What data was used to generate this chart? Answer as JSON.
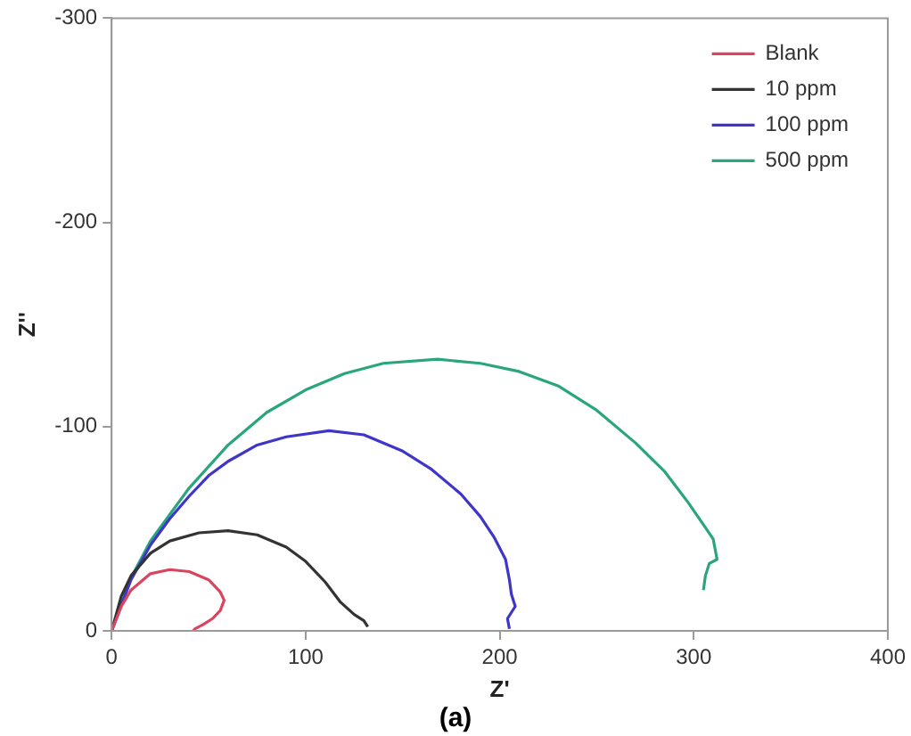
{
  "chart_data": {
    "type": "line",
    "xlabel": "Z'",
    "ylabel": "Z''",
    "annotations": [
      "(a)"
    ],
    "xlim": [
      0,
      400
    ],
    "xticks": [
      0,
      100,
      200,
      300,
      400
    ],
    "ylim": [
      0,
      -300
    ],
    "yticks": [
      0,
      -100,
      -200,
      -300
    ],
    "grid": false,
    "legend": "top right",
    "marker": "none",
    "line_style": "solid",
    "series": [
      {
        "name": "Blank",
        "color": "#d9455f",
        "x": [
          0,
          5,
          10,
          20,
          30,
          40,
          50,
          56,
          58,
          56,
          52,
          47,
          43,
          42
        ],
        "values": [
          0,
          -12,
          -20,
          -28,
          -30,
          -29,
          -25,
          -19,
          -15,
          -10,
          -6,
          -3,
          -1,
          0
        ]
      },
      {
        "name": "10 ppm",
        "color": "#333333",
        "x": [
          0,
          5,
          10,
          20,
          30,
          45,
          60,
          75,
          90,
          100,
          110,
          118,
          125,
          130,
          132
        ],
        "values": [
          0,
          -17,
          -27,
          -38,
          -44,
          -48,
          -49,
          -47,
          -41,
          -34,
          -24,
          -14,
          -8,
          -5,
          -2
        ]
      },
      {
        "name": "100 ppm",
        "color": "#3f35c8",
        "x": [
          0,
          10,
          20,
          30,
          40,
          50,
          60,
          75,
          90,
          112,
          130,
          150,
          165,
          180,
          190,
          197,
          203,
          205,
          206,
          208,
          204,
          205
        ],
        "values": [
          0,
          -25,
          -42,
          -55,
          -66,
          -76,
          -83,
          -91,
          -95,
          -98,
          -96,
          -88,
          -79,
          -67,
          -56,
          -46,
          -35,
          -25,
          -18,
          -12,
          -6,
          -1
        ]
      },
      {
        "name": "500 ppm",
        "color": "#2aa57e",
        "x": [
          0,
          10,
          20,
          40,
          60,
          80,
          100,
          120,
          140,
          168,
          190,
          210,
          230,
          250,
          270,
          285,
          297,
          305,
          310,
          311,
          312,
          308,
          306,
          305
        ],
        "values": [
          0,
          -26,
          -44,
          -70,
          -91,
          -107,
          -118,
          -126,
          -131,
          -133,
          -131,
          -127,
          -120,
          -108,
          -92,
          -78,
          -63,
          -52,
          -45,
          -40,
          -35,
          -33,
          -27,
          -20
        ]
      }
    ]
  }
}
